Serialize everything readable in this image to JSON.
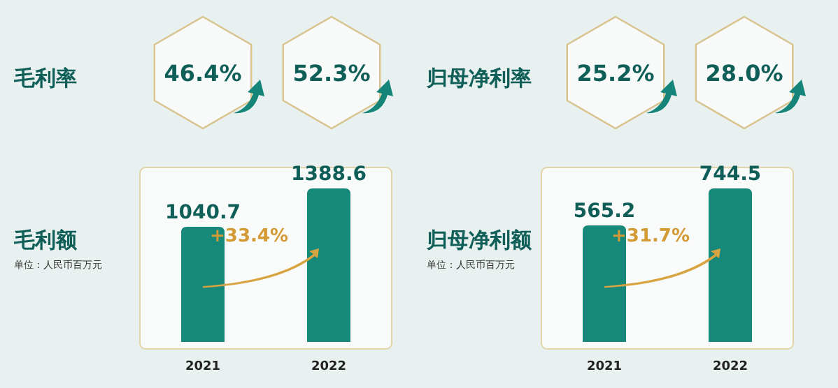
{
  "chart_data": [
    {
      "type": "other",
      "title": "毛利率",
      "annotations": [
        "46.4%",
        "52.3%"
      ]
    },
    {
      "type": "other",
      "title": "归母净利率",
      "annotations": [
        "25.2%",
        "28.0%"
      ]
    },
    {
      "type": "bar",
      "title": "毛利额",
      "subtitle": "单位：人民币百万元",
      "categories": [
        "2021",
        "2022"
      ],
      "values": [
        1040.7,
        1388.6
      ],
      "color": "#16897a",
      "data_labels": true,
      "annotations": [
        "+33.4%"
      ]
    },
    {
      "type": "bar",
      "title": "归母净利额",
      "subtitle": "单位：人民币百万元",
      "categories": [
        "2021",
        "2022"
      ],
      "values": [
        565.2,
        744.5
      ],
      "color": "#16897a",
      "data_labels": true,
      "annotations": [
        "+31.7%"
      ]
    }
  ]
}
